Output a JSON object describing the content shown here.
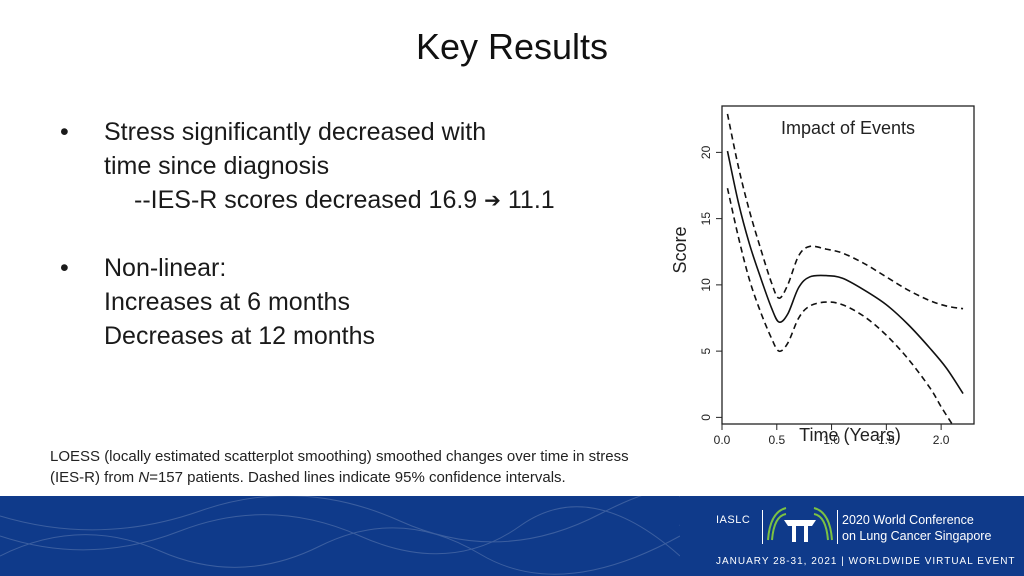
{
  "slide": {
    "title": "Key Results"
  },
  "bullets": [
    {
      "marker": "•",
      "lines": [
        "Stress significantly decreased with",
        "time since diagnosis"
      ],
      "sub": {
        "prefix": "--IES-R scores decreased 16.9",
        "arrow": "➔",
        "suffix": "11.1"
      }
    },
    {
      "marker": "•",
      "lines": [
        "Non-linear:",
        "Increases at 6 months",
        "Decreases at 12 months"
      ]
    }
  ],
  "caption": {
    "line1": "LOESS (locally estimated scatterplot smoothing) smoothed changes over time in stress",
    "line2_pre": "(IES-R) from ",
    "line2_n": "N",
    "line2_post": "=157 patients. Dashed lines indicate 95% confidence intervals."
  },
  "chart_data": {
    "type": "line",
    "title": "Impact of Events",
    "xlabel": "Time (Years)",
    "ylabel": "Score",
    "xlim": [
      0,
      2.3
    ],
    "ylim": [
      -0.5,
      23.5
    ],
    "xticks": [
      "0.0",
      "0.5",
      "1.0",
      "1.5",
      "2.0"
    ],
    "yticks": [
      "0",
      "5",
      "10",
      "15",
      "20"
    ],
    "series": [
      {
        "style": "solid",
        "x": [
          0.05,
          0.15,
          0.25,
          0.35,
          0.45,
          0.52,
          0.6,
          0.7,
          0.8,
          0.95,
          1.1,
          1.3,
          1.5,
          1.7,
          1.9,
          2.05,
          2.2
        ],
        "y": [
          20.1,
          16.2,
          13.1,
          10.6,
          8.3,
          7.2,
          7.8,
          9.8,
          10.6,
          10.7,
          10.5,
          9.6,
          8.5,
          7.0,
          5.2,
          3.7,
          1.8
        ]
      },
      {
        "style": "dashed",
        "x": [
          0.05,
          0.15,
          0.25,
          0.35,
          0.45,
          0.52,
          0.6,
          0.7,
          0.8,
          0.95,
          1.1,
          1.3,
          1.5,
          1.7,
          1.9,
          2.05,
          2.2
        ],
        "y": [
          22.9,
          18.9,
          15.6,
          12.8,
          10.2,
          9.0,
          10.0,
          12.2,
          12.9,
          12.7,
          12.4,
          11.6,
          10.6,
          9.6,
          8.8,
          8.4,
          8.2
        ]
      },
      {
        "style": "dashed",
        "x": [
          0.05,
          0.15,
          0.25,
          0.35,
          0.45,
          0.52,
          0.6,
          0.7,
          0.8,
          0.95,
          1.1,
          1.3,
          1.5,
          1.7,
          1.9,
          2.0,
          2.1
        ],
        "y": [
          17.3,
          13.6,
          10.4,
          8.0,
          6.0,
          5.0,
          5.6,
          7.5,
          8.4,
          8.7,
          8.5,
          7.6,
          6.2,
          4.4,
          2.2,
          0.8,
          -0.5
        ]
      }
    ]
  },
  "footer": {
    "org": "IASLC",
    "conference_line1": "2020 World Conference",
    "conference_line2": "on Lung Cancer Singapore",
    "dates": "JANUARY 28-31, 2021 | WORLDWIDE VIRTUAL EVENT",
    "bg_color": "#0f3a8a",
    "accent_color": "#7bc143"
  }
}
